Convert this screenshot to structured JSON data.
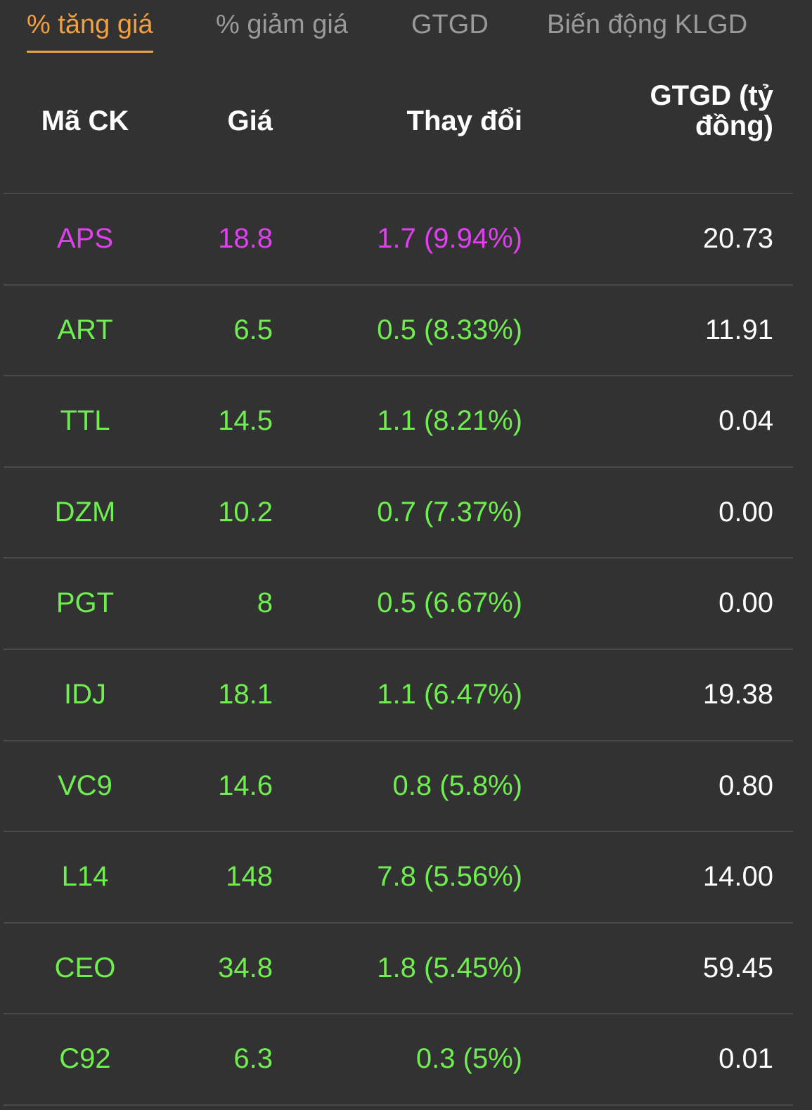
{
  "tabs": [
    "% tăng giá",
    "% giảm giá",
    "GTGD",
    "Biến động KLGD"
  ],
  "active_tab": 0,
  "table": {
    "header": [
      "Mã CK",
      "Giá",
      "Thay đổi",
      "GTGD (tỷ đồng)"
    ],
    "rows": [
      {
        "cells": [
          "APS",
          "18.8",
          "1.7 (9.94%)",
          "20.73"
        ],
        "color": "#e040f0"
      },
      {
        "cells": [
          "ART",
          "6.5",
          "0.5 (8.33%)",
          "11.91"
        ],
        "color": "#6fef4f"
      },
      {
        "cells": [
          "TTL",
          "14.5",
          "1.1 (8.21%)",
          "0.04"
        ],
        "color": "#6fef4f"
      },
      {
        "cells": [
          "DZM",
          "10.2",
          "0.7 (7.37%)",
          "0.00"
        ],
        "color": "#6fef4f"
      },
      {
        "cells": [
          "PGT",
          "8",
          "0.5 (6.67%)",
          "0.00"
        ],
        "color": "#6fef4f"
      },
      {
        "cells": [
          "IDJ",
          "18.1",
          "1.1 (6.47%)",
          "19.38"
        ],
        "color": "#6fef4f"
      },
      {
        "cells": [
          "VC9",
          "14.6",
          "0.8 (5.8%)",
          "0.80"
        ],
        "color": "#6fef4f"
      },
      {
        "cells": [
          "L14",
          "148",
          "7.8 (5.56%)",
          "14.00"
        ],
        "color": "#6fef4f"
      },
      {
        "cells": [
          "CEO",
          "34.8",
          "1.8 (5.45%)",
          "59.45"
        ],
        "color": "#6fef4f"
      },
      {
        "cells": [
          "C92",
          "6.3",
          "0.3 (5%)",
          "0.01"
        ],
        "color": "#6fef4f"
      }
    ]
  }
}
